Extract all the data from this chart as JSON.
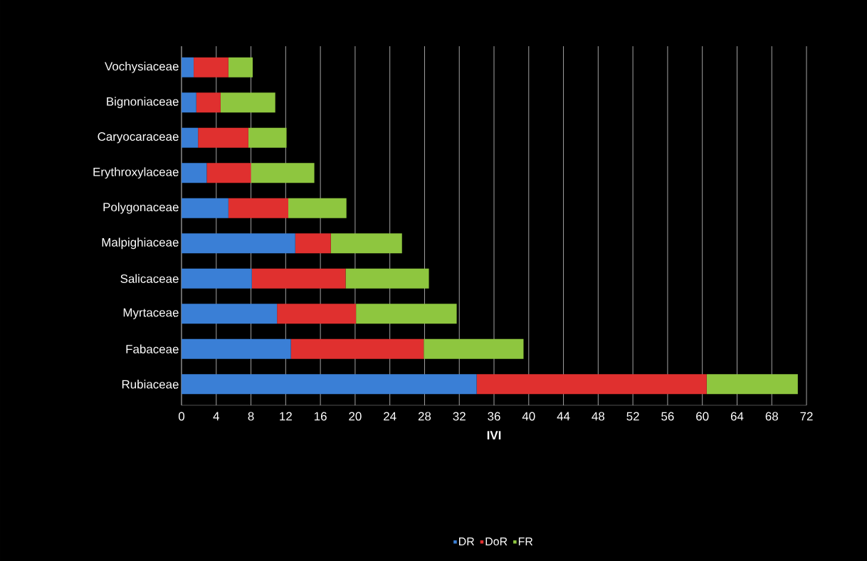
{
  "chart_data": {
    "type": "bar",
    "orientation": "horizontal",
    "stacked": true,
    "xlabel": "IVI",
    "categories": [
      "Vochysiaceae",
      "Bignoniaceae",
      "Caryocaraceae",
      "Erythroxylaceae",
      "Polygonaceae",
      "Malpighiaceae",
      "Salicaceae",
      "Myrtaceae",
      "Fabaceae",
      "Rubiaceae"
    ],
    "series": [
      {
        "name": "DR",
        "color": "#3a7fd6",
        "values": [
          1.4,
          1.7,
          1.9,
          2.9,
          5.4,
          13.1,
          8.1,
          11.0,
          12.6,
          34.0
        ]
      },
      {
        "name": "DoR",
        "color": "#e0302f",
        "values": [
          4.0,
          2.8,
          5.8,
          5.1,
          6.9,
          4.1,
          10.8,
          9.1,
          15.3,
          26.5
        ]
      },
      {
        "name": "FR",
        "color": "#8ec63f",
        "values": [
          2.8,
          6.3,
          4.4,
          7.3,
          6.7,
          8.2,
          9.6,
          11.6,
          11.5,
          10.5
        ]
      }
    ],
    "xlim": [
      0,
      72
    ],
    "xticks": [
      0,
      4,
      8,
      12,
      16,
      20,
      24,
      28,
      32,
      36,
      40,
      44,
      48,
      52,
      56,
      60,
      64,
      68,
      72
    ],
    "grid": "x",
    "legend": "bottom"
  }
}
